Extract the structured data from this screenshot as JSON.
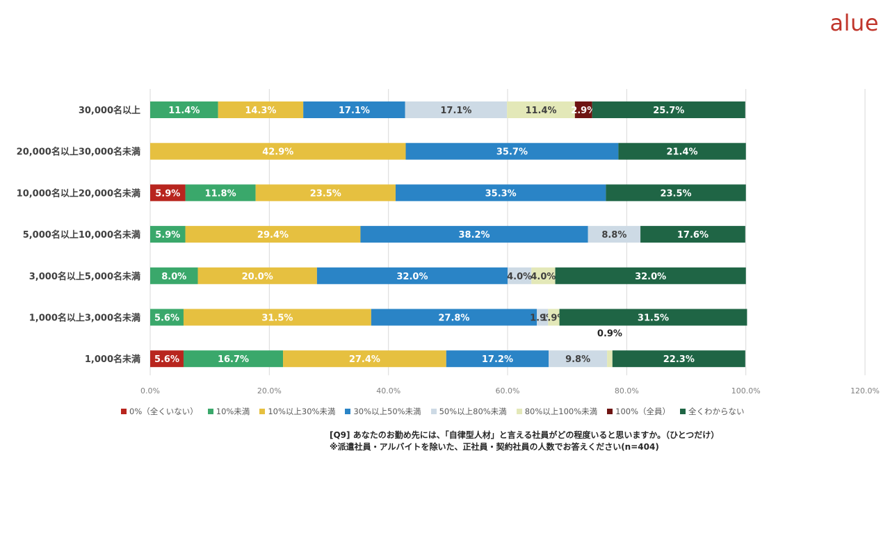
{
  "logo": "alue",
  "note": {
    "line1": "[Q9] あなたのお勤め先には、「自律型人材」と言える社員がどの程度いると思いますか。（ひとつだけ）",
    "line2": "※派遣社員・アルバイトを除いた、正社員・契約社員の人数でお答えください(n=404)"
  },
  "chart_data": {
    "type": "bar",
    "orientation": "horizontal",
    "stacked": true,
    "categories": [
      "30,000名以上",
      "20,000名以上30,000名未満",
      "10,000名以上20,000名未満",
      "5,000名以上10,000名未満",
      "3,000名以上5,000名未満",
      "1,000名以上3,000名未満",
      "1,000名未満"
    ],
    "xlim": [
      0,
      120
    ],
    "xticks": [
      "0.0%",
      "20.0%",
      "40.0%",
      "60.0%",
      "80.0%",
      "100.0%",
      "120.0%"
    ],
    "grid": true,
    "legend_position": "bottom",
    "series": [
      {
        "name": "0%（全くいない）",
        "color": "#b8251e",
        "values": [
          0,
          0,
          5.9,
          0,
          0,
          0,
          5.6
        ],
        "labels": [
          "",
          "",
          "5.9%",
          "",
          "",
          "",
          "5.6%"
        ]
      },
      {
        "name": "10%未満",
        "color": "#3aa86b",
        "values": [
          11.4,
          0,
          11.8,
          5.9,
          8.0,
          5.6,
          16.7
        ],
        "labels": [
          "11.4%",
          "",
          "11.8%",
          "5.9%",
          "8.0%",
          "5.6%",
          "16.7%"
        ]
      },
      {
        "name": "10%以上30%未満",
        "color": "#e6c040",
        "values": [
          14.3,
          42.9,
          23.5,
          29.4,
          20.0,
          31.5,
          27.4
        ],
        "labels": [
          "14.3%",
          "42.9%",
          "23.5%",
          "29.4%",
          "20.0%",
          "31.5%",
          "27.4%"
        ]
      },
      {
        "name": "30%以上50%未満",
        "color": "#2a84c6",
        "values": [
          17.1,
          35.7,
          35.3,
          38.2,
          32.0,
          27.8,
          17.2
        ],
        "labels": [
          "17.1%",
          "35.7%",
          "35.3%",
          "38.2%",
          "32.0%",
          "27.8%",
          "17.2%"
        ]
      },
      {
        "name": "50%以上80%未満",
        "color": "#cddae5",
        "values": [
          17.1,
          0,
          0,
          8.8,
          4.0,
          1.9,
          9.8
        ],
        "labels": [
          "17.1%",
          "",
          "",
          "8.8%",
          "4.0%",
          "1.9%",
          "9.8%"
        ]
      },
      {
        "name": "80%以上100%未満",
        "color": "#e3e8b8",
        "values": [
          11.4,
          0,
          0,
          0,
          4.0,
          1.9,
          0.9
        ],
        "labels": [
          "11.4%",
          "",
          "",
          "",
          "4.0%",
          "1.9%",
          "0.9%"
        ]
      },
      {
        "name": "100%（全員）",
        "color": "#6e1412",
        "values": [
          2.9,
          0,
          0,
          0,
          0,
          0,
          0
        ],
        "labels": [
          "2.9%",
          "",
          "",
          "",
          "",
          "",
          ""
        ]
      },
      {
        "name": "全くわからない",
        "color": "#1f6545",
        "values": [
          25.7,
          21.4,
          23.5,
          17.6,
          32.0,
          31.5,
          22.3
        ],
        "labels": [
          "25.7%",
          "21.4%",
          "23.5%",
          "17.6%",
          "32.0%",
          "31.5%",
          "22.3%"
        ]
      }
    ]
  }
}
